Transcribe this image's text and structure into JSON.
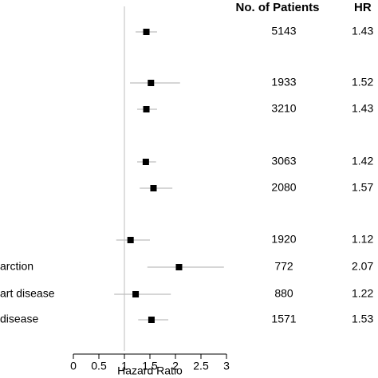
{
  "chart_data": {
    "type": "forest",
    "patients_header": "No. of Patients",
    "hr_header": "HR",
    "categories": [
      null,
      null,
      null,
      null,
      null,
      null,
      "arction",
      "art disease",
      "disease"
    ],
    "patients": [
      5143,
      1933,
      3210,
      3063,
      2080,
      1920,
      772,
      880,
      1571
    ],
    "hr": [
      1.43,
      1.52,
      1.43,
      1.42,
      1.57,
      1.12,
      2.07,
      1.22,
      1.53
    ],
    "ci_low": [
      1.22,
      1.11,
      1.25,
      1.25,
      1.3,
      0.84,
      1.45,
      0.8,
      1.27
    ],
    "ci_high": [
      1.64,
      2.09,
      1.64,
      1.62,
      1.94,
      1.5,
      2.95,
      1.91,
      1.86
    ],
    "xlim": [
      0,
      3
    ],
    "xticks": [
      0,
      0.5,
      1,
      1.5,
      2,
      2.5,
      3
    ],
    "xlabel": "Hazard Ratio",
    "ref_line": 1,
    "color": "#000000",
    "ci_color": "#bdbdbd",
    "ref_color": "#bdbdbd"
  }
}
